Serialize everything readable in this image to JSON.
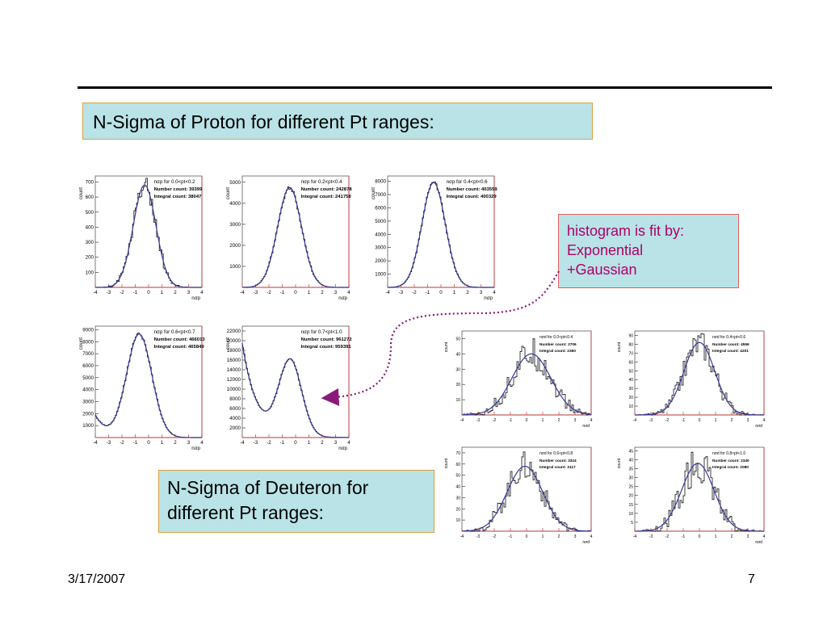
{
  "slide": {
    "title": "N-Sigma of Proton for different Pt ranges:",
    "deuteron_caption_lines": [
      "N-Sigma of Deuteron for",
      "different Pt ranges:"
    ],
    "fit_note_lines": [
      "histogram is fit by:",
      "Exponential",
      "+Gaussian"
    ],
    "date": "3/17/2007",
    "page_number": "7"
  },
  "colors": {
    "fit_curve": "#3a3a9a",
    "data": "#111111",
    "frame": "#c06060",
    "note_text": "#b0006a",
    "arrow": "#8a1a7a"
  },
  "chart_data": [
    {
      "type": "line",
      "panel": "proton-1",
      "stats_title": "nσp for 0.0<pt<0.2",
      "stats": [
        "Number count: 39399",
        "Integral count: 38047"
      ],
      "ylabel": "count",
      "xlabel": "nσp",
      "xlim": [
        -4,
        4
      ],
      "ylim": [
        0,
        740
      ],
      "yticks": [
        100,
        200,
        300,
        400,
        500,
        600,
        700
      ],
      "shape": "g1",
      "mean": -0.3,
      "sigma": 0.85,
      "peak": 680,
      "noise": 0.09
    },
    {
      "type": "line",
      "panel": "proton-2",
      "stats_title": "nσp for 0.2<pt<0.4",
      "stats": [
        "Number count: 242878",
        "Integral count: 241758"
      ],
      "ylabel": "count",
      "xlabel": "nσp",
      "xlim": [
        -4,
        4
      ],
      "ylim": [
        0,
        5300
      ],
      "yticks": [
        1000,
        2000,
        3000,
        4000,
        5000
      ],
      "shape": "g1",
      "mean": -0.45,
      "sigma": 0.9,
      "peak": 4750,
      "noise": 0.02
    },
    {
      "type": "line",
      "panel": "proton-3",
      "stats_title": "nσp for 0.4<pt<0.6",
      "stats": [
        "Number count: 403559",
        "Integral count: 400329"
      ],
      "ylabel": "count",
      "xlabel": "nσp",
      "xlim": [
        -4,
        4
      ],
      "ylim": [
        0,
        8400
      ],
      "yticks": [
        1000,
        2000,
        3000,
        4000,
        5000,
        6000,
        7000,
        8000
      ],
      "shape": "g1",
      "mean": -0.55,
      "sigma": 0.88,
      "peak": 7900,
      "noise": 0.015
    },
    {
      "type": "line",
      "panel": "proton-4",
      "stats_title": "nσp for 0.6<pt<0.7",
      "stats": [
        "Number count: 466013",
        "Integral count: 465849"
      ],
      "ylabel": "count",
      "xlabel": "nσp",
      "xlim": [
        -4,
        4
      ],
      "ylim": [
        0,
        9300
      ],
      "yticks": [
        1000,
        2000,
        3000,
        4000,
        5000,
        6000,
        7000,
        8000,
        9000
      ],
      "shape": "g1exp",
      "mean": -0.7,
      "sigma": 0.95,
      "peak": 8600,
      "expA": 1900,
      "expK": 1.2,
      "noise": 0.015
    },
    {
      "type": "line",
      "panel": "proton-5",
      "stats_title": "nσp for 0.7<pt<1.0",
      "stats": [
        "Number count: 961272",
        "Integral count: 959391"
      ],
      "ylabel": "count",
      "xlabel": "nσp",
      "xlim": [
        -4,
        4
      ],
      "ylim": [
        0,
        23000
      ],
      "yticks": [
        2000,
        4000,
        6000,
        8000,
        10000,
        12000,
        14000,
        16000,
        18000,
        20000,
        22000
      ],
      "shape": "g1exp",
      "mean": -0.4,
      "sigma": 0.85,
      "peak": 15500,
      "expA": 19500,
      "expK": 0.9,
      "noise": 0.01
    },
    {
      "type": "line",
      "panel": "deuteron-1",
      "stats_title": "nσd for 0.0<pt<0.4",
      "stats": [
        "Number count: 2706",
        "Integral count: 2360"
      ],
      "ylabel": "count",
      "xlabel": "nσd",
      "xlim": [
        -4,
        4
      ],
      "ylim": [
        0,
        55
      ],
      "yticks": [
        10,
        20,
        30,
        40,
        50
      ],
      "shape": "g1",
      "mean": 0.3,
      "sigma": 1.2,
      "peak": 40,
      "noise": 0.22
    },
    {
      "type": "line",
      "panel": "deuteron-2",
      "stats_title": "nσd for 0.4<pt<0.6",
      "stats": [
        "Number count: 4556",
        "Integral count: 4201"
      ],
      "ylabel": "count",
      "xlabel": "nσd",
      "xlim": [
        -4,
        4
      ],
      "ylim": [
        0,
        95
      ],
      "yticks": [
        10,
        20,
        30,
        40,
        50,
        60,
        70,
        80,
        90
      ],
      "shape": "g1",
      "mean": 0.0,
      "sigma": 0.95,
      "peak": 82,
      "noise": 0.18
    },
    {
      "type": "line",
      "panel": "deuteron-3",
      "stats_title": "nσd for 0.6<pt<0.8",
      "stats": [
        "Number count: 3324",
        "Integral count: 3117"
      ],
      "ylabel": "count",
      "xlabel": "nσd",
      "xlim": [
        -4,
        4
      ],
      "ylim": [
        0,
        75
      ],
      "yticks": [
        10,
        20,
        30,
        40,
        50,
        60,
        70
      ],
      "shape": "g1",
      "mean": -0.1,
      "sigma": 1.1,
      "peak": 58,
      "noise": 0.2
    },
    {
      "type": "line",
      "panel": "deuteron-4",
      "stats_title": "nσd for 0.8<pt<1.0",
      "stats": [
        "Number count: 2340",
        "Integral count: 2080"
      ],
      "ylabel": "count",
      "xlabel": "nσd",
      "xlim": [
        -4,
        4
      ],
      "ylim": [
        0,
        47
      ],
      "yticks": [
        5,
        10,
        15,
        20,
        25,
        30,
        35,
        40,
        45
      ],
      "shape": "g1",
      "mean": -0.1,
      "sigma": 1.0,
      "peak": 38,
      "noise": 0.25
    }
  ]
}
